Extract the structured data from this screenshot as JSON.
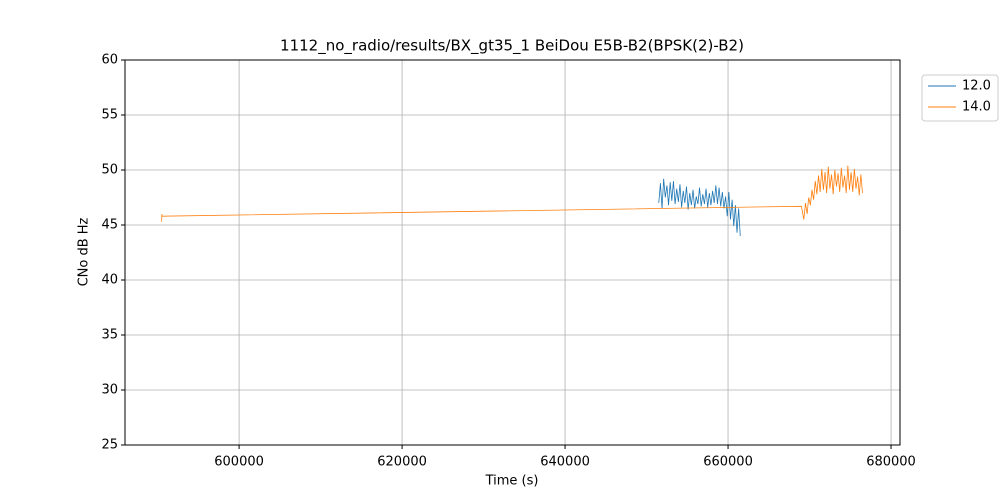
{
  "chart_data": {
    "type": "line",
    "title": "1112_no_radio/results/BX_gt35_1 BeiDou E5B-B2(BPSK(2)-B2)",
    "xlabel": "Time (s)",
    "ylabel": "CNo dB Hz",
    "xlim": [
      586000,
      681100
    ],
    "ylim": [
      25,
      60
    ],
    "xticks": [
      600000,
      620000,
      640000,
      660000,
      680000
    ],
    "yticks": [
      25,
      30,
      35,
      40,
      45,
      50,
      55,
      60
    ],
    "grid": true,
    "legend": "upper right",
    "series": [
      {
        "name": "12.0",
        "color": "#1f77b4",
        "x": [
          651500,
          651700,
          651900,
          652100,
          652300,
          652500,
          652700,
          652900,
          653100,
          653300,
          653500,
          653700,
          653900,
          654100,
          654300,
          654500,
          654700,
          654900,
          655100,
          655300,
          655500,
          655700,
          655900,
          656100,
          656300,
          656500,
          656700,
          656900,
          657100,
          657300,
          657500,
          657700,
          657900,
          658100,
          658300,
          658500,
          658700,
          658900,
          659100,
          659300,
          659500,
          659700,
          659900,
          660100,
          660300,
          660500,
          660700,
          660900,
          661100,
          661300,
          661500
        ],
        "values": [
          47.0,
          48.8,
          46.5,
          49.2,
          47.5,
          48.6,
          46.8,
          48.9,
          47.2,
          49.0,
          46.9,
          48.3,
          47.1,
          48.7,
          46.6,
          48.1,
          47.0,
          48.5,
          46.4,
          47.9,
          46.8,
          48.2,
          46.5,
          47.6,
          46.9,
          48.4,
          46.7,
          47.8,
          46.9,
          48.3,
          46.6,
          47.9,
          46.8,
          48.1,
          47.0,
          48.6,
          46.9,
          48.4,
          46.7,
          48.0,
          46.5,
          47.6,
          45.8,
          48.0,
          45.5,
          47.3,
          44.9,
          46.8,
          44.3,
          46.5,
          44.0
        ]
      },
      {
        "name": "14.0",
        "color": "#ff7f0e",
        "x": [
          590500,
          590520,
          590550,
          669000,
          669300,
          669500,
          669700,
          669900,
          670100,
          670300,
          670500,
          670700,
          670900,
          671100,
          671300,
          671500,
          671700,
          671900,
          672100,
          672300,
          672500,
          672700,
          672900,
          673100,
          673300,
          673500,
          673700,
          673900,
          674100,
          674300,
          674500,
          674700,
          674900,
          675100,
          675300,
          675500,
          675700,
          675900,
          676100,
          676300,
          676500
        ],
        "values": [
          45.3,
          46.0,
          45.8,
          46.7,
          45.5,
          47.0,
          46.0,
          47.5,
          46.8,
          48.2,
          47.3,
          49.0,
          47.8,
          49.5,
          48.0,
          50.1,
          48.2,
          49.8,
          47.9,
          50.3,
          48.3,
          49.6,
          47.8,
          50.0,
          48.5,
          49.7,
          48.0,
          50.2,
          48.4,
          49.5,
          47.9,
          50.4,
          48.2,
          49.8,
          48.0,
          50.1,
          48.3,
          49.4,
          47.7,
          49.6,
          47.9
        ]
      }
    ]
  }
}
